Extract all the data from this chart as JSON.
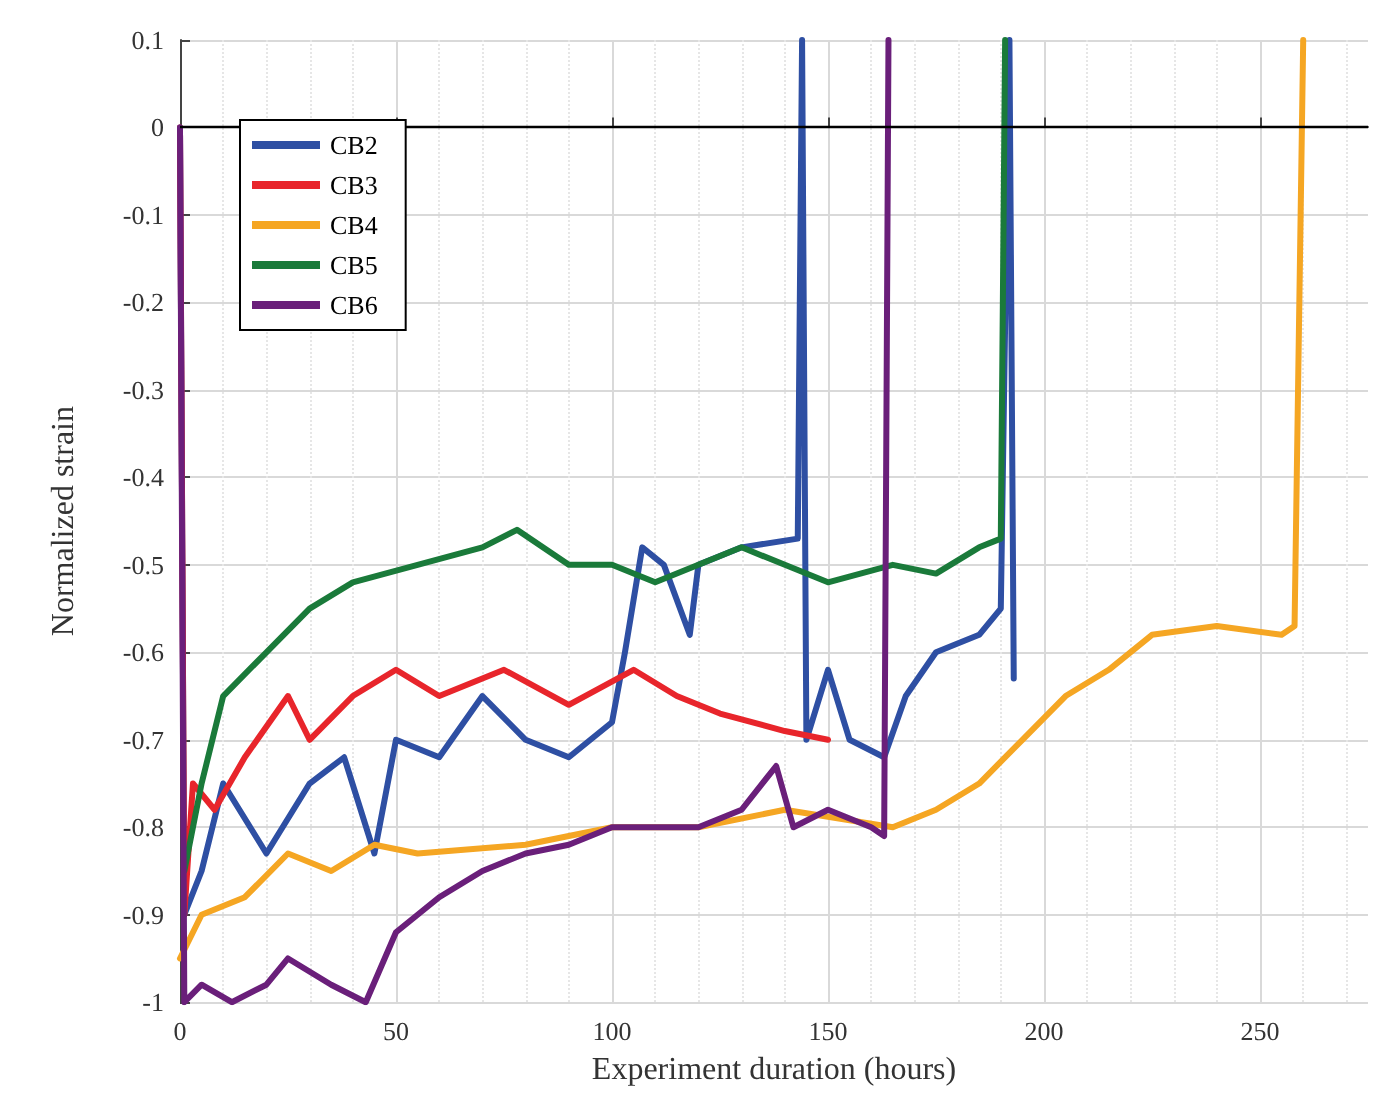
{
  "chart_data": {
    "type": "line",
    "xlabel": "Experiment duration (hours)",
    "ylabel": "Normalized strain",
    "xlim": [
      0,
      275
    ],
    "xticks": [
      0,
      50,
      100,
      150,
      200,
      250
    ],
    "ylim": [
      -1,
      0.1
    ],
    "yticks": [
      -1,
      -0.9,
      -0.8,
      -0.7,
      -0.6,
      -0.5,
      -0.4,
      -0.3,
      -0.2,
      -0.1,
      0,
      0.1
    ],
    "grid": true,
    "legend": "top left",
    "marker": "none",
    "line_style": "solid",
    "ref_lines": [
      {
        "axis": "y",
        "value": 0,
        "color": "#000000"
      }
    ],
    "series": [
      {
        "name": "CB2",
        "color": "#2e4fa3",
        "x": [
          0,
          1,
          5,
          10,
          20,
          30,
          38,
          45,
          50,
          60,
          70,
          80,
          90,
          100,
          103,
          107,
          112,
          118,
          120,
          130,
          143,
          144,
          145,
          150,
          155,
          163,
          168,
          175,
          185,
          190,
          192,
          193
        ],
        "values": [
          0,
          -0.9,
          -0.85,
          -0.75,
          -0.83,
          -0.75,
          -0.72,
          -0.83,
          -0.7,
          -0.72,
          -0.65,
          -0.7,
          -0.72,
          -0.68,
          -0.6,
          -0.48,
          -0.5,
          -0.58,
          -0.5,
          -0.48,
          -0.47,
          0.1,
          -0.7,
          -0.62,
          -0.7,
          -0.72,
          -0.65,
          -0.6,
          -0.58,
          -0.55,
          0.1,
          -0.63
        ]
      },
      {
        "name": "CB3",
        "color": "#e8252b",
        "x": [
          0,
          1,
          3,
          8,
          15,
          25,
          30,
          40,
          50,
          60,
          75,
          90,
          105,
          115,
          125,
          140,
          150
        ],
        "values": [
          0,
          -0.9,
          -0.75,
          -0.78,
          -0.72,
          -0.65,
          -0.7,
          -0.65,
          -0.62,
          -0.65,
          -0.62,
          -0.66,
          -0.62,
          -0.65,
          -0.67,
          -0.69,
          -0.7
        ]
      },
      {
        "name": "CB4",
        "color": "#f5a623",
        "x": [
          0,
          5,
          15,
          25,
          35,
          45,
          55,
          80,
          100,
          120,
          140,
          165,
          175,
          185,
          195,
          205,
          215,
          225,
          240,
          255,
          258,
          260
        ],
        "values": [
          -0.95,
          -0.9,
          -0.88,
          -0.83,
          -0.85,
          -0.82,
          -0.83,
          -0.82,
          -0.8,
          -0.8,
          -0.78,
          -0.8,
          -0.78,
          -0.75,
          -0.7,
          -0.65,
          -0.62,
          -0.58,
          -0.57,
          -0.58,
          -0.57,
          0.1
        ]
      },
      {
        "name": "CB5",
        "color": "#1a7a3a",
        "x": [
          1,
          5,
          10,
          20,
          30,
          40,
          55,
          70,
          78,
          90,
          100,
          110,
          120,
          130,
          140,
          150,
          165,
          175,
          185,
          190,
          191
        ],
        "values": [
          -0.85,
          -0.75,
          -0.65,
          -0.6,
          -0.55,
          -0.52,
          -0.5,
          -0.48,
          -0.46,
          -0.5,
          -0.5,
          -0.52,
          -0.5,
          -0.48,
          -0.5,
          -0.52,
          -0.5,
          -0.51,
          -0.48,
          -0.47,
          0.1
        ]
      },
      {
        "name": "CB6",
        "color": "#6a1f7a",
        "x": [
          0,
          1,
          5,
          12,
          20,
          25,
          35,
          43,
          50,
          60,
          70,
          80,
          90,
          100,
          120,
          130,
          138,
          142,
          150,
          160,
          163,
          164
        ],
        "values": [
          0,
          -1,
          -0.98,
          -1,
          -0.98,
          -0.95,
          -0.98,
          -1,
          -0.92,
          -0.88,
          -0.85,
          -0.83,
          -0.82,
          -0.8,
          -0.8,
          -0.78,
          -0.73,
          -0.8,
          -0.78,
          -0.8,
          -0.81,
          0.1
        ]
      }
    ]
  }
}
